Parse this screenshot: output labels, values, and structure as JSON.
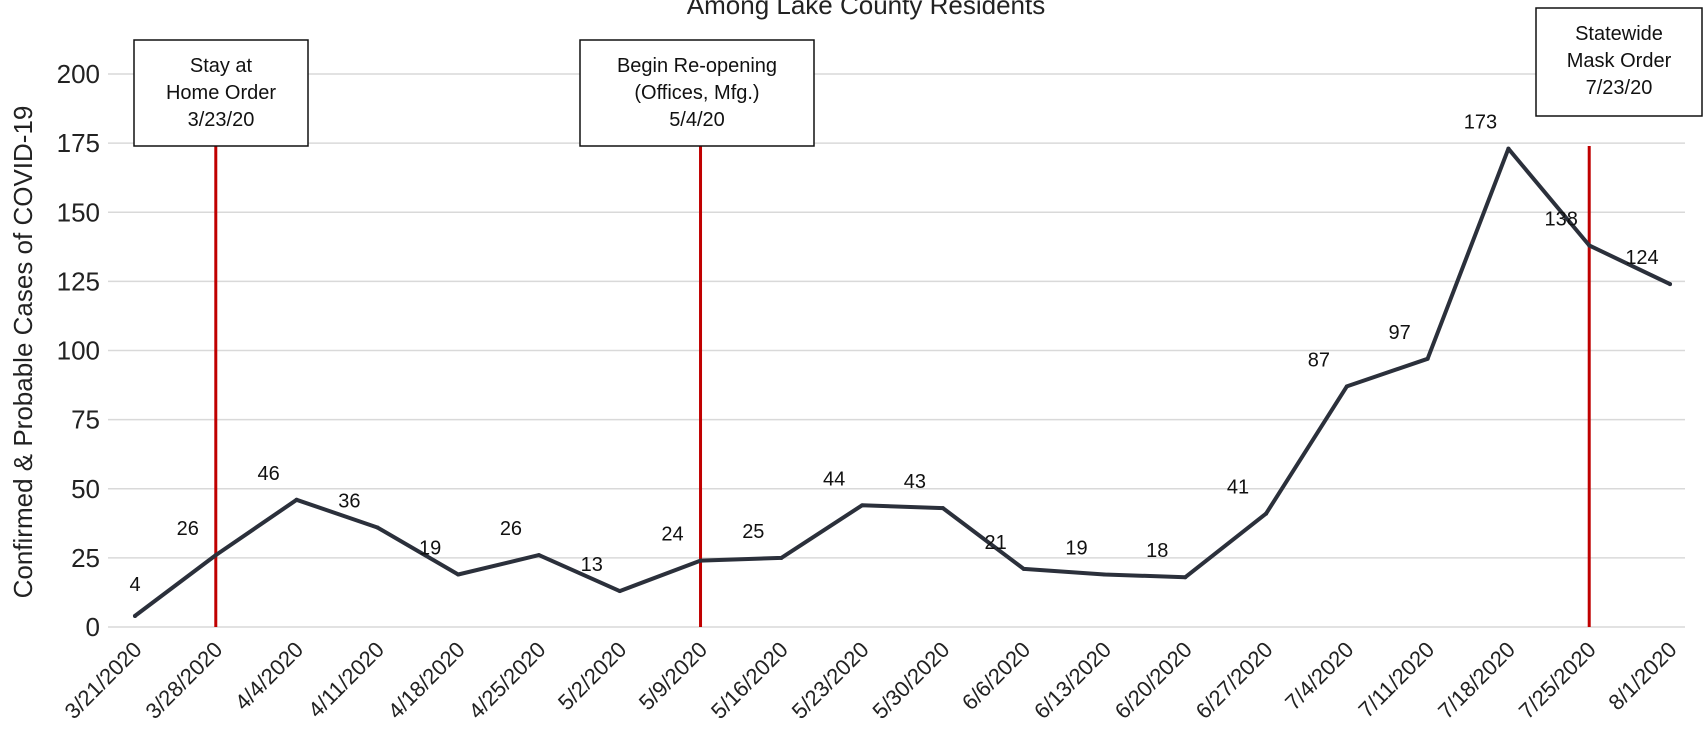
{
  "chart_data": {
    "type": "line",
    "title": "Among Lake County Residents",
    "xlabel": "",
    "ylabel": "Confirmed & Probable Cases of COVID-19",
    "ylim": [
      0,
      200
    ],
    "yticks": [
      0,
      25,
      50,
      75,
      100,
      125,
      150,
      175,
      200
    ],
    "grid": true,
    "categories": [
      "3/21/2020",
      "3/28/2020",
      "4/4/2020",
      "4/11/2020",
      "4/18/2020",
      "4/25/2020",
      "5/2/2020",
      "5/9/2020",
      "5/16/2020",
      "5/23/2020",
      "5/30/2020",
      "6/6/2020",
      "6/13/2020",
      "6/20/2020",
      "6/27/2020",
      "7/4/2020",
      "7/11/2020",
      "7/18/2020",
      "7/25/2020",
      "8/1/2020"
    ],
    "series": [
      {
        "values": [
          4,
          26,
          46,
          36,
          19,
          26,
          13,
          24,
          25,
          44,
          43,
          21,
          19,
          18,
          41,
          87,
          97,
          173,
          138,
          124
        ],
        "color": "#2b303b"
      }
    ],
    "annotations": [
      {
        "category": "3/28/2020",
        "lines": [
          "Stay at",
          "Home Order",
          "3/23/20"
        ],
        "color": "#c00000"
      },
      {
        "category": "5/9/2020",
        "lines": [
          "Begin Re-opening",
          "(Offices, Mfg.)",
          "5/4/20"
        ],
        "color": "#c00000"
      },
      {
        "category": "7/25/2020",
        "lines": [
          "Statewide",
          "Mask Order",
          "7/23/20"
        ],
        "color": "#c00000"
      }
    ]
  }
}
